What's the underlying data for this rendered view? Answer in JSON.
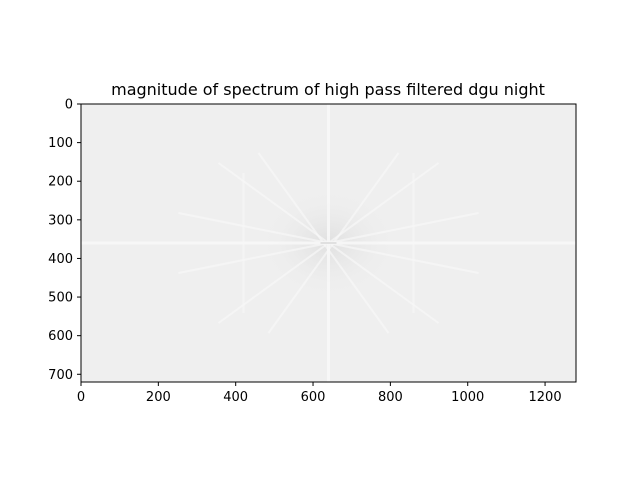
{
  "chart_data": {
    "type": "heatmap",
    "title": "magnitude of spectrum of high pass filtered dgu night",
    "xlabel": "",
    "ylabel": "",
    "xlim": [
      0,
      1280
    ],
    "ylim": [
      720,
      0
    ],
    "x_ticks": [
      0,
      200,
      400,
      600,
      800,
      1000,
      1200
    ],
    "y_ticks": [
      0,
      100,
      200,
      300,
      400,
      500,
      600,
      700
    ],
    "image_center": [
      640,
      360
    ],
    "colormap": "gray",
    "background_color": "#efefef",
    "feature_color": "#f8f8f8",
    "center_shadow_color": "#e3e3e3",
    "grid": false,
    "legend": "none"
  }
}
